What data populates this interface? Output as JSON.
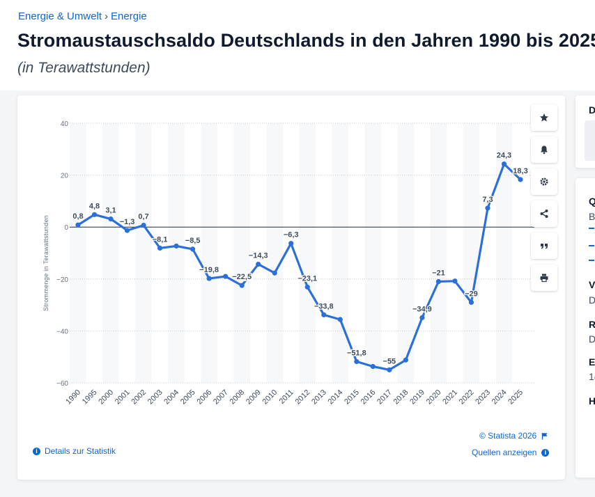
{
  "breadcrumb": {
    "item1": "Energie & Umwelt",
    "separator": "›",
    "item2": "Energie"
  },
  "title": "Stromaustauschsaldo Deutschlands in den Jahren 1990 bis 2025",
  "subtitle": "(in Terawattstunden)",
  "toolbar": {
    "favorite_icon": "star-icon",
    "alert_icon": "bell-icon",
    "settings_icon": "gear-icon",
    "share_icon": "share-icon",
    "cite_icon": "quote-icon",
    "print_icon": "print-icon"
  },
  "footer": {
    "copyright": "© Statista 2026",
    "details_link": "Details zur Statistik",
    "sources_link": "Quellen anzeigen"
  },
  "side_panel": {
    "top_letter": "D",
    "items": [
      "Q",
      "B",
      "V",
      "D",
      "R",
      "D",
      "E",
      "1(",
      "H"
    ]
  },
  "colors": {
    "line": "#2b6fd8",
    "link": "#0c66d6",
    "title": "#0f1b2c"
  },
  "chart_data": {
    "type": "line",
    "title": "Stromaustauschsaldo Deutschlands in den Jahren 1990 bis 2025",
    "subtitle": "(in Terawattstunden)",
    "xlabel": "",
    "ylabel": "Strommenge in Terawattstunden",
    "ylim": [
      -60,
      40
    ],
    "yticks": [
      40,
      20,
      0,
      -20,
      -40,
      -60
    ],
    "ytick_labels": [
      "40",
      "20",
      "0",
      "−20",
      "−40",
      "−60"
    ],
    "grid": true,
    "categories": [
      "1990",
      "1995",
      "2000",
      "2001",
      "2002",
      "2003",
      "2004",
      "2005",
      "2006",
      "2007",
      "2008",
      "2009",
      "2010",
      "2011",
      "2012",
      "2013",
      "2014",
      "2015",
      "2016",
      "2017",
      "2018",
      "2019",
      "2020",
      "2021",
      "2022",
      "2023",
      "2024",
      "2025"
    ],
    "series": [
      {
        "name": "Stromaustauschsaldo",
        "values": [
          0.8,
          4.8,
          3.1,
          -1.3,
          0.7,
          -8.1,
          -7.3,
          -8.5,
          -19.8,
          -19.0,
          -22.5,
          -14.3,
          -17.7,
          -6.3,
          -23.1,
          -33.8,
          -35.6,
          -51.8,
          -53.7,
          -55.0,
          -51.2,
          -34.9,
          -21.0,
          -20.8,
          -29.0,
          7.3,
          24.3,
          18.3
        ]
      }
    ],
    "data_labels": [
      {
        "category": "1990",
        "text": "0,8"
      },
      {
        "category": "1995",
        "text": "4,8"
      },
      {
        "category": "2000",
        "text": "3,1"
      },
      {
        "category": "2001",
        "text": "−1,3"
      },
      {
        "category": "2002",
        "text": "0,7"
      },
      {
        "category": "2003",
        "text": "−8,1"
      },
      {
        "category": "2005",
        "text": "−8,5"
      },
      {
        "category": "2006",
        "text": "−19,8"
      },
      {
        "category": "2008",
        "text": "−22,5"
      },
      {
        "category": "2009",
        "text": "−14,3"
      },
      {
        "category": "2011",
        "text": "−6,3"
      },
      {
        "category": "2012",
        "text": "−23,1"
      },
      {
        "category": "2013",
        "text": "−33,8"
      },
      {
        "category": "2015",
        "text": "−51,8"
      },
      {
        "category": "2017",
        "text": "−55"
      },
      {
        "category": "2019",
        "text": "−34,9"
      },
      {
        "category": "2020",
        "text": "−21"
      },
      {
        "category": "2022",
        "text": "−29"
      },
      {
        "category": "2023",
        "text": "7,3"
      },
      {
        "category": "2024",
        "text": "24,3"
      },
      {
        "category": "2025",
        "text": "18,3"
      }
    ]
  }
}
